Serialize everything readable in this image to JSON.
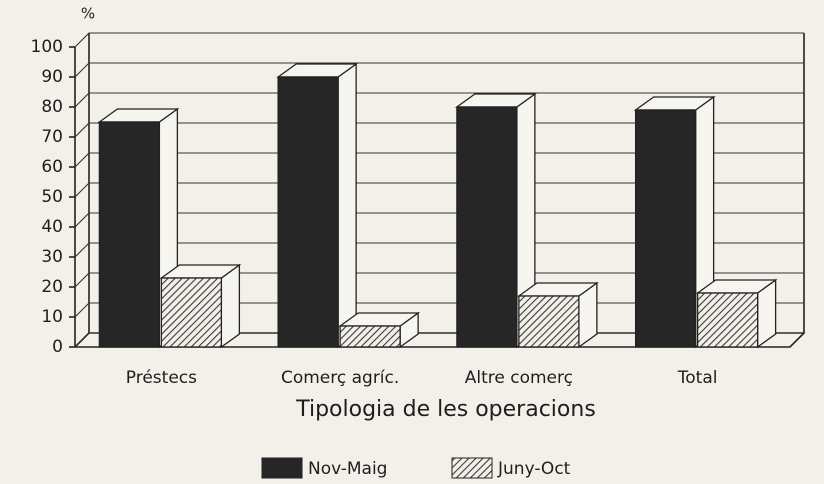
{
  "chart_data": {
    "type": "bar3d",
    "ylabel": "%",
    "xlabel": "Tipologia de les operacions",
    "categories": [
      "Préstecs",
      "Comerç agríc.",
      "Altre comerç",
      "Total"
    ],
    "series": [
      {
        "name": "Nov-Maig",
        "color": "#262626",
        "fill": "solid",
        "values": [
          75,
          90,
          80,
          79
        ]
      },
      {
        "name": "Juny-Oct",
        "color": "#3a3a3a",
        "fill": "hatch",
        "values": [
          23,
          7,
          17,
          18
        ]
      }
    ],
    "ylim": [
      0,
      100
    ],
    "yticks": [
      0,
      10,
      20,
      30,
      40,
      50,
      60,
      70,
      80,
      90,
      100
    ],
    "grid": true,
    "legend": "bottom"
  }
}
